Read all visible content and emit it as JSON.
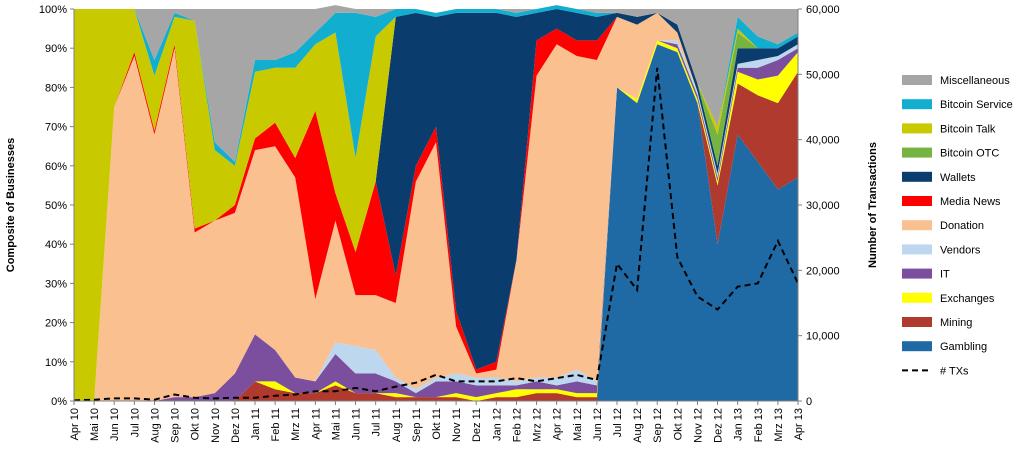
{
  "chart_data": {
    "type": "area",
    "xlabel": "",
    "ylabel": "Composite of Businesses",
    "y2label": "Number of Transactions",
    "ylim": [
      0,
      100
    ],
    "y2lim": [
      0,
      60000
    ],
    "yticks": [
      "0%",
      "10%",
      "20%",
      "30%",
      "40%",
      "50%",
      "60%",
      "70%",
      "80%",
      "90%",
      "100%"
    ],
    "y2ticks": [
      "0",
      "10,000",
      "20,000",
      "30,000",
      "40,000",
      "50,000",
      "60,000"
    ],
    "grid": false,
    "legend_position": "right",
    "categories": [
      "Apr 10",
      "Mai 10",
      "Jun 10",
      "Jul 10",
      "Aug 10",
      "Sep 10",
      "Okt 10",
      "Nov 10",
      "Dez 10",
      "Jan 11",
      "Feb 11",
      "Mrz 11",
      "Apr 11",
      "Mai 11",
      "Jun 11",
      "Jul 11",
      "Aug 11",
      "Sep 11",
      "Okt 11",
      "Nov 11",
      "Dez 11",
      "Jan 12",
      "Feb 12",
      "Mrz 12",
      "Apr 12",
      "Mai 12",
      "Jun 12",
      "Jul 12",
      "Aug 12",
      "Sep 12",
      "Okt 12",
      "Nov 12",
      "Dez 12",
      "Jan 13",
      "Feb 13",
      "Mrz 13",
      "Apr 13"
    ],
    "series": [
      {
        "name": "Gambling",
        "color": "#1F6AA5",
        "values": [
          0,
          0,
          0,
          0,
          0,
          0,
          0,
          0,
          0,
          0,
          0,
          0,
          0,
          0,
          0,
          0,
          0,
          0,
          0,
          0,
          0,
          0,
          0,
          0,
          0,
          0,
          0,
          80,
          76,
          91,
          89,
          76,
          40,
          68,
          61,
          54,
          57
        ]
      },
      {
        "name": "Mining",
        "color": "#B03A2E",
        "values": [
          0,
          0,
          0,
          0,
          0,
          0,
          0,
          0,
          0,
          5,
          3,
          2,
          2,
          4,
          2,
          2,
          1,
          1,
          1,
          1,
          0,
          1,
          1,
          2,
          2,
          1,
          1,
          0,
          0,
          0,
          0,
          0,
          15,
          13,
          17,
          22,
          27
        ]
      },
      {
        "name": "Exchanges",
        "color": "#FFFF00",
        "values": [
          0,
          0,
          0,
          0,
          0,
          0,
          0,
          0,
          0,
          0,
          2,
          0,
          0,
          1,
          0,
          0,
          1,
          0,
          0,
          1,
          1,
          1,
          2,
          1,
          1,
          1,
          1,
          0,
          1,
          1,
          1,
          1,
          1,
          3,
          4,
          7,
          5
        ]
      },
      {
        "name": "IT",
        "color": "#7B4F9D",
        "values": [
          0,
          0,
          0,
          0,
          0,
          1,
          1,
          2,
          7,
          12,
          8,
          4,
          3,
          7,
          5,
          5,
          3,
          1,
          4,
          3,
          3,
          2,
          1,
          2,
          1,
          3,
          2,
          0,
          0,
          0,
          1,
          1,
          1,
          1,
          3,
          4,
          1
        ]
      },
      {
        "name": "Vendors",
        "color": "#BDD7EE",
        "values": [
          0,
          0,
          0,
          0,
          0,
          0,
          0,
          0,
          0,
          0,
          0,
          0,
          0,
          3,
          7,
          6,
          1,
          1,
          1,
          2,
          2,
          2,
          1,
          1,
          2,
          3,
          1,
          0,
          0,
          0,
          1,
          1,
          1,
          1,
          2,
          1,
          1
        ]
      },
      {
        "name": "Donation",
        "color": "#FAC090",
        "values": [
          0,
          0,
          75,
          88,
          68,
          89,
          42,
          44,
          41,
          47,
          52,
          51,
          21,
          31,
          13,
          14,
          19,
          53,
          60,
          12,
          1,
          2,
          31,
          77,
          85,
          80,
          82,
          18,
          19,
          7,
          2,
          0,
          0,
          0,
          0,
          0,
          0
        ]
      },
      {
        "name": "Media News",
        "color": "#FF0000",
        "values": [
          0,
          0,
          0,
          1,
          1,
          1,
          1,
          0,
          2,
          3,
          6,
          5,
          48,
          7,
          11,
          29,
          7,
          4,
          4,
          4,
          1,
          2,
          0,
          9,
          4,
          4,
          5,
          0,
          0,
          0,
          0,
          0,
          0,
          0,
          0,
          0,
          0
        ]
      },
      {
        "name": "Wallets",
        "color": "#0B3C6E",
        "values": [
          0,
          0,
          0,
          0,
          0,
          0,
          0,
          0,
          0,
          0,
          0,
          0,
          0,
          0,
          0,
          0,
          66,
          39,
          28,
          76,
          91,
          89,
          62,
          7,
          5,
          7,
          6,
          1,
          2,
          0,
          2,
          2,
          2,
          4,
          3,
          2,
          2
        ]
      },
      {
        "name": "Bitcoin OTC",
        "color": "#77B341",
        "values": [
          0,
          0,
          0,
          0,
          0,
          0,
          0,
          0,
          0,
          0,
          0,
          0,
          0,
          0,
          0,
          0,
          0,
          0,
          0,
          0,
          0,
          0,
          0,
          0,
          0,
          0,
          0,
          0,
          0,
          0,
          0,
          0,
          8,
          4,
          0,
          0,
          0
        ]
      },
      {
        "name": "Bitcoin Talk",
        "color": "#C9C900",
        "values": [
          100,
          100,
          25,
          11,
          14,
          7,
          53,
          18,
          10,
          17,
          14,
          23,
          17,
          41,
          24,
          37,
          0,
          0,
          0,
          0,
          0,
          0,
          0,
          0,
          0,
          0,
          0,
          0,
          0,
          0,
          0,
          0,
          2,
          1,
          0,
          0,
          0
        ]
      },
      {
        "name": "Bitcoin Service",
        "color": "#12AECF",
        "values": [
          0,
          0,
          0,
          0,
          4,
          1,
          0,
          2,
          1,
          3,
          2,
          4,
          3,
          5,
          37,
          5,
          2,
          1,
          1,
          1,
          1,
          1,
          1,
          1,
          1,
          1,
          1,
          0,
          0,
          0,
          0,
          0,
          0,
          3,
          3,
          1,
          1
        ]
      },
      {
        "name": "Miscellaneous",
        "color": "#A6A6A6",
        "values": [
          0,
          0,
          0,
          0,
          13,
          1,
          3,
          34,
          39,
          13,
          13,
          11,
          6,
          2,
          1,
          2,
          0,
          0,
          0,
          0,
          0,
          0,
          1,
          0,
          0,
          0,
          1,
          1,
          2,
          1,
          4,
          19,
          30,
          2,
          7,
          9,
          6
        ]
      }
    ],
    "line_series": {
      "name": "# TXs",
      "axis": "right",
      "values": [
        100,
        200,
        400,
        400,
        200,
        1000,
        500,
        400,
        500,
        500,
        800,
        1000,
        1500,
        1500,
        2000,
        1500,
        2200,
        2800,
        4000,
        3000,
        3000,
        3000,
        3500,
        3000,
        3500,
        4000,
        3200,
        21000,
        17000,
        51000,
        22000,
        16000,
        14000,
        17500,
        18000,
        24500,
        18000
      ]
    }
  }
}
